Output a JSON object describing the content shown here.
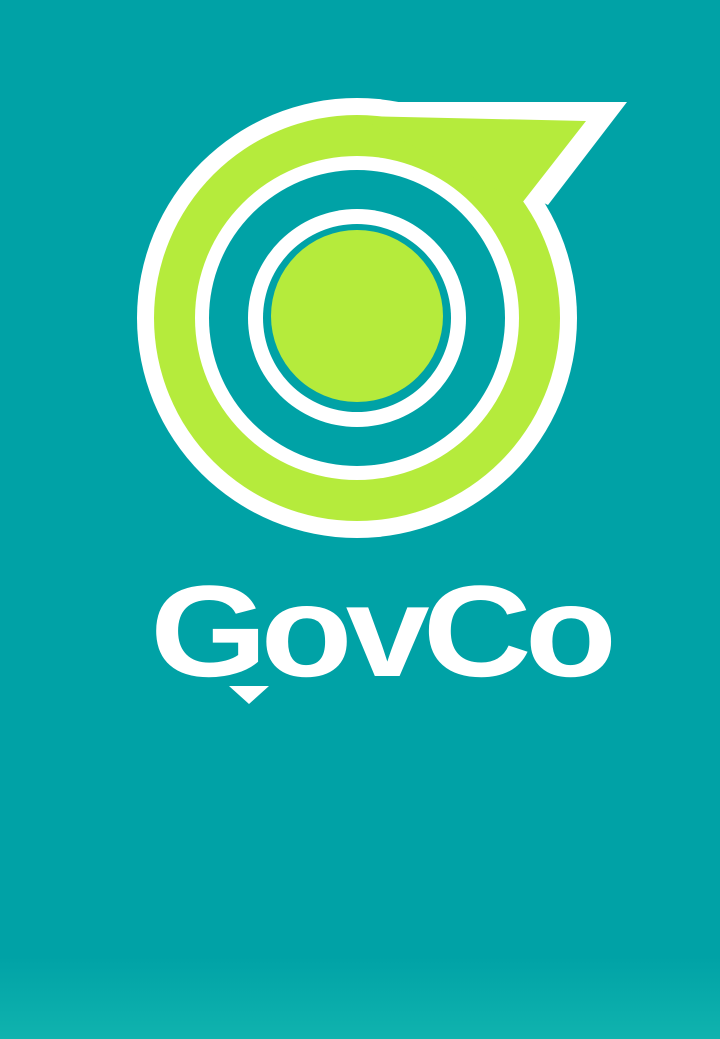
{
  "app": {
    "name": "GovCo",
    "wordmark_text": "GovCo"
  },
  "logo": {
    "icon": "target-speech-bubble-icon",
    "colors": {
      "background": "#00a2a6",
      "accent": "#b5eb3c",
      "outline": "#ffffff"
    }
  }
}
